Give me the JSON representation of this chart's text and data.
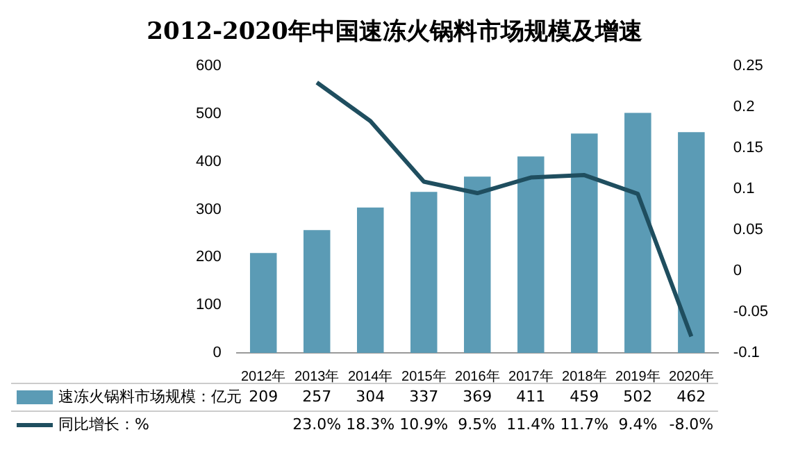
{
  "chart_data": {
    "type": "bar",
    "title": "2012-2020年中国速冻火锅料市场规模及增速",
    "categories": [
      "2012年",
      "2013年",
      "2014年",
      "2015年",
      "2016年",
      "2017年",
      "2018年",
      "2019年",
      "2020年"
    ],
    "series": [
      {
        "name": "速冻火锅料市场规模：亿元",
        "color": "#5b9bb5",
        "values": [
          209,
          257,
          304,
          337,
          369,
          411,
          459,
          502,
          462
        ],
        "value_labels": [
          "209",
          "257",
          "304",
          "337",
          "369",
          "411",
          "459",
          "502",
          "462"
        ]
      },
      {
        "name": "同比增长：%",
        "type": "line",
        "axis": "y2",
        "color": "#1f4e5f",
        "values": [
          null,
          0.23,
          0.183,
          0.109,
          0.095,
          0.114,
          0.117,
          0.094,
          -0.08
        ],
        "value_labels": [
          null,
          "23.0%",
          "18.3%",
          "10.9%",
          "9.5%",
          "11.4%",
          "11.7%",
          "9.4%",
          "-8.0%"
        ]
      }
    ],
    "ylim": [
      0,
      600
    ],
    "yticks": [
      0,
      100,
      200,
      300,
      400,
      500,
      600
    ],
    "y2lim": [
      -0.1,
      0.25
    ],
    "y2ticks": [
      -0.1,
      -0.05,
      0,
      0.05,
      0.1,
      0.15,
      0.2,
      0.25
    ],
    "marker": "none",
    "line_style": "solid",
    "legend": "bottom",
    "grid": false
  }
}
